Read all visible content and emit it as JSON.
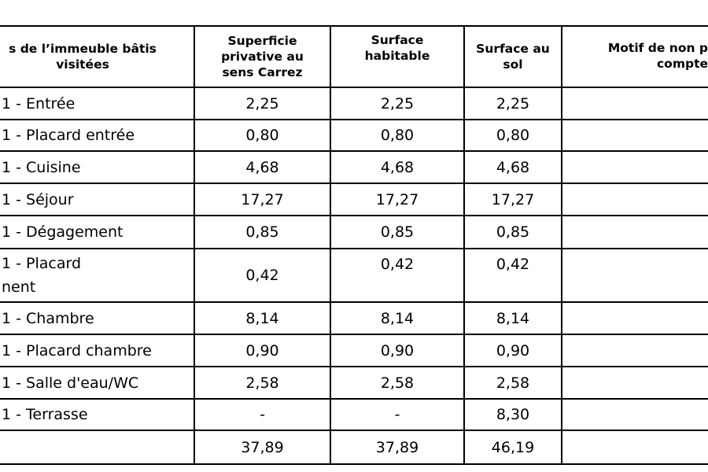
{
  "table": {
    "headers": [
      "s de l’immeuble bâtis\nvisitées",
      "Superficie\nprivative au\nsens Carrez",
      "Surface\nhabitable",
      "Surface au\nsol",
      "Motif de non p\ncompte"
    ],
    "rows": [
      [
        "1 - Entrée",
        "2,25",
        "2,25",
        "2,25"
      ],
      [
        "1 - Placard entrée",
        "0,80",
        "0,80",
        "0,80"
      ],
      [
        "1 - Cuisine",
        "4,68",
        "4,68",
        "4,68"
      ],
      [
        "1 - Séjour",
        "17,27",
        "17,27",
        "17,27"
      ],
      [
        "1 - Dégagement",
        "0,85",
        "0,85",
        "0,85"
      ],
      [
        "1 - Placard\nnent",
        "0,42",
        "0,42",
        "0,42"
      ],
      [
        "1 - Chambre",
        "8,14",
        "8,14",
        "8,14"
      ],
      [
        "1 - Placard chambre",
        "0,90",
        "0,90",
        "0,90"
      ],
      [
        "1 - Salle d'eau/WC",
        "2,58",
        "2,58",
        "2,58"
      ],
      [
        "1 - Terrasse",
        "-",
        "-",
        "8,30"
      ]
    ],
    "total_row": [
      "37,89",
      "37,89",
      "46,19"
    ]
  }
}
